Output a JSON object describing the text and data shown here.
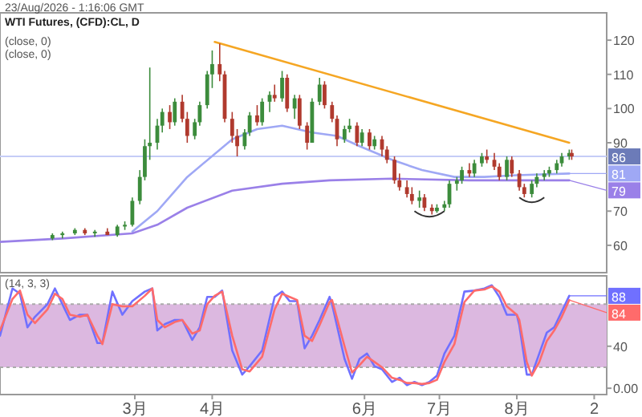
{
  "chart_data": [
    {
      "type": "candlestick",
      "title": "WTI Futures, (CFD):CL, D",
      "subtitle": "23/Aug/2026 - 1:16:06 GMT",
      "tick_labels": "y",
      "annotations": [
        "(close, 0)",
        "(close, 0)",
        {
          "text": "81",
          "x": "--08-22",
          "y": 81
        },
        {
          "text": "79",
          "x": "--08-22",
          "y": 79
        }
      ],
      "x": [
        "--01-27",
        "--01-31",
        "--02-05",
        "--02-09",
        "--02-13",
        "--02-18",
        "--02-22",
        "--02-25",
        "--02-28",
        "--03-03",
        "--03-05",
        "--03-07",
        "--03-10",
        "--03-12",
        "--03-15",
        "--03-17",
        "--03-20",
        "--03-22",
        "--03-25",
        "--03-27",
        "--03-30",
        "--04-01",
        "--04-04",
        "--04-06",
        "--04-09",
        "--04-11",
        "--04-14",
        "--04-16",
        "--04-19",
        "--04-21",
        "--04-24",
        "--04-26",
        "--04-29",
        "--05-01",
        "--05-04",
        "--05-06",
        "--05-09",
        "--05-11",
        "--05-14",
        "--05-16",
        "--05-19",
        "--05-21",
        "--05-24",
        "--05-26",
        "--05-29",
        "--05-31",
        "--06-03",
        "--06-05",
        "--06-08",
        "--06-10",
        "--06-13",
        "--06-15",
        "--06-18",
        "--06-20",
        "--06-23",
        "--06-25",
        "--06-28",
        "--06-30",
        "--07-03",
        "--07-05",
        "--07-08",
        "--07-10",
        "--07-13",
        "--07-15",
        "--07-18",
        "--07-20",
        "--07-23",
        "--07-25",
        "--07-28",
        "--07-30",
        "--08-02",
        "--08-04",
        "--08-07",
        "--08-09",
        "--08-12",
        "--08-14",
        "--08-17",
        "--08-19",
        "--08-22",
        "--08-23"
      ],
      "ohlc": [
        [
          62,
          63.5,
          61.5,
          63
        ],
        [
          63,
          64,
          62,
          63.5
        ],
        [
          63.5,
          65,
          63,
          64.5
        ],
        [
          64.5,
          65,
          63,
          63.5
        ],
        [
          63.5,
          64.5,
          62.5,
          64
        ],
        [
          64,
          65,
          63,
          63
        ],
        [
          63,
          66,
          62.5,
          65.5
        ],
        [
          65.5,
          67,
          64.5,
          66
        ],
        [
          66,
          74,
          65.5,
          73
        ],
        [
          73,
          82,
          72,
          80
        ],
        [
          80,
          91,
          79,
          89
        ],
        [
          89,
          112,
          85,
          90
        ],
        [
          90,
          97,
          88,
          95
        ],
        [
          95,
          100,
          93,
          99
        ],
        [
          99,
          101,
          94,
          96
        ],
        [
          96,
          103,
          95,
          102
        ],
        [
          102,
          104,
          96,
          97
        ],
        [
          97,
          99,
          90,
          92
        ],
        [
          92,
          97,
          91,
          96
        ],
        [
          96,
          102,
          95,
          101
        ],
        [
          101,
          111,
          100,
          110
        ],
        [
          110,
          117,
          106,
          113
        ],
        [
          113,
          119,
          108,
          110
        ],
        [
          110,
          111,
          96,
          97
        ],
        [
          97,
          99,
          90,
          92
        ],
        [
          92,
          94,
          86,
          89
        ],
        [
          89,
          94,
          88,
          93
        ],
        [
          93,
          99,
          92,
          98
        ],
        [
          98,
          101,
          95,
          96
        ],
        [
          96,
          103,
          95,
          102
        ],
        [
          102,
          105,
          99,
          104
        ],
        [
          104,
          107,
          102,
          103
        ],
        [
          103,
          111,
          102,
          109
        ],
        [
          109,
          110,
          99,
          100
        ],
        [
          100,
          104,
          97,
          103
        ],
        [
          103,
          104,
          94,
          95
        ],
        [
          95,
          96,
          88,
          90
        ],
        [
          90,
          103,
          90,
          102
        ],
        [
          102,
          109,
          101,
          107
        ],
        [
          107,
          108,
          100,
          101
        ],
        [
          101,
          102,
          96,
          97
        ],
        [
          97,
          98,
          89,
          91
        ],
        [
          91,
          95,
          90,
          94
        ],
        [
          94,
          97,
          93,
          95
        ],
        [
          95,
          96,
          89,
          90
        ],
        [
          90,
          94,
          89,
          93
        ],
        [
          93,
          94,
          88,
          89
        ],
        [
          89,
          92,
          88,
          91
        ],
        [
          91,
          92,
          86,
          88
        ],
        [
          88,
          89,
          84,
          85
        ],
        [
          85,
          86,
          78,
          79
        ],
        [
          79,
          81,
          76,
          77
        ],
        [
          77,
          79,
          74,
          75
        ],
        [
          75,
          77,
          72,
          73
        ],
        [
          73,
          76,
          71,
          74
        ],
        [
          74,
          75,
          70,
          71
        ],
        [
          71,
          72,
          69,
          70
        ],
        [
          70,
          72,
          69.5,
          71
        ],
        [
          71,
          73,
          70,
          72
        ],
        [
          72,
          79,
          71,
          78
        ],
        [
          78,
          80,
          76,
          79
        ],
        [
          79,
          83,
          78,
          82
        ],
        [
          82,
          84,
          80,
          81
        ],
        [
          81,
          85,
          80,
          84
        ],
        [
          84,
          87,
          83,
          86
        ],
        [
          86,
          88,
          84,
          85
        ],
        [
          85,
          87,
          82,
          83
        ],
        [
          83,
          84,
          79,
          80
        ],
        [
          80,
          86,
          79,
          85
        ],
        [
          85,
          86,
          80,
          81
        ],
        [
          81,
          82,
          76,
          77
        ],
        [
          77,
          78,
          74,
          75
        ],
        [
          75,
          79,
          74,
          78
        ],
        [
          78,
          81,
          77,
          80
        ],
        [
          80,
          82,
          79,
          81
        ],
        [
          81,
          83,
          80,
          82
        ],
        [
          82,
          85,
          81,
          84
        ],
        [
          84,
          87,
          83,
          86
        ],
        [
          86,
          88,
          85,
          87
        ],
        [
          87,
          88,
          85,
          86
        ]
      ],
      "colors": [
        "#3c8c3c",
        "#3c8c3c",
        "#3c8c3c",
        "#b03a2e",
        "#3c8c3c",
        "#b03a2e",
        "#3c8c3c",
        "#3c8c3c",
        "#3c8c3c",
        "#3c8c3c",
        "#3c8c3c",
        "#3c8c3c",
        "#3c8c3c",
        "#3c8c3c",
        "#b03a2e",
        "#3c8c3c",
        "#b03a2e",
        "#b03a2e",
        "#3c8c3c",
        "#3c8c3c",
        "#3c8c3c",
        "#3c8c3c",
        "#b03a2e",
        "#b03a2e",
        "#b03a2e",
        "#b03a2e",
        "#3c8c3c",
        "#3c8c3c",
        "#b03a2e",
        "#3c8c3c",
        "#3c8c3c",
        "#b03a2e",
        "#3c8c3c",
        "#b03a2e",
        "#3c8c3c",
        "#b03a2e",
        "#b03a2e",
        "#3c8c3c",
        "#3c8c3c",
        "#b03a2e",
        "#b03a2e",
        "#b03a2e",
        "#3c8c3c",
        "#3c8c3c",
        "#b03a2e",
        "#3c8c3c",
        "#b03a2e",
        "#3c8c3c",
        "#b03a2e",
        "#b03a2e",
        "#b03a2e",
        "#b03a2e",
        "#b03a2e",
        "#b03a2e",
        "#3c8c3c",
        "#b03a2e",
        "#b03a2e",
        "#3c8c3c",
        "#3c8c3c",
        "#3c8c3c",
        "#3c8c3c",
        "#3c8c3c",
        "#b03a2e",
        "#3c8c3c",
        "#3c8c3c",
        "#b03a2e",
        "#b03a2e",
        "#b03a2e",
        "#3c8c3c",
        "#b03a2e",
        "#b03a2e",
        "#b03a2e",
        "#3c8c3c",
        "#3c8c3c",
        "#3c8c3c",
        "#3c8c3c",
        "#3c8c3c",
        "#3c8c3c",
        "#3c8c3c",
        "#b03a2e"
      ],
      "series": [
        {
          "type": "line",
          "color": "#9fa8f5",
          "x": [
            "--02-28",
            "--03-10",
            "--03-22",
            "--04-09",
            "--04-19",
            "--04-29",
            "--05-11",
            "--05-21",
            "--05-30",
            "--06-12",
            "--06-24",
            "--07-07",
            "--07-19",
            "--08-01",
            "--08-22"
          ],
          "values": [
            64,
            70,
            80,
            91,
            94,
            95,
            93,
            92,
            89,
            85,
            82,
            80,
            80,
            80.5,
            81
          ]
        },
        {
          "type": "line",
          "color": "#9a80e8",
          "x": [
            "--01-06",
            "--01-31",
            "--02-28",
            "--03-10",
            "--03-22",
            "--04-09",
            "--04-29",
            "--05-18",
            "--06-12",
            "--07-13",
            "--08-22"
          ],
          "values": [
            61,
            62,
            63.5,
            66,
            71,
            76,
            78,
            79,
            79.5,
            79,
            79
          ]
        },
        {
          "type": "line",
          "color": "#f5a623",
          "x": [
            "--04-02",
            "--08-22"
          ],
          "values": [
            119.5,
            90
          ]
        }
      ],
      "ref_lines": [
        {
          "axis": "y",
          "value": 86,
          "label": "86",
          "color": "#c5cdf7"
        }
      ],
      "xlim": [
        "--01-06",
        "--09-06"
      ],
      "ylim": [
        52,
        128
      ],
      "yticks": [
        60,
        70,
        90,
        100,
        110,
        120
      ]
    },
    {
      "type": "line",
      "annotations": [
        "(14, 3, 3)",
        {
          "text": "88",
          "x": "--08-22",
          "y": 88
        },
        {
          "text": "84",
          "x": "--08-22",
          "y": 84
        }
      ],
      "x": [
        "--01-06",
        "--01-11",
        "--01-14",
        "--01-17",
        "--01-20",
        "--01-25",
        "--01-28",
        "--01-31",
        "--02-03",
        "--02-07",
        "--02-10",
        "--02-14",
        "--02-16",
        "--02-20",
        "--02-24",
        "--02-28",
        "--03-05",
        "--03-08",
        "--03-10",
        "--03-13",
        "--03-17",
        "--03-20",
        "--03-24",
        "--03-27",
        "--03-30",
        "--04-02",
        "--04-05",
        "--04-09",
        "--04-13",
        "--04-16",
        "--04-21",
        "--04-26",
        "--04-29",
        "--05-02",
        "--05-05",
        "--05-08",
        "--05-11",
        "--05-14",
        "--05-18",
        "--05-19",
        "--05-24",
        "--05-27",
        "--05-30",
        "--06-02",
        "--06-05",
        "--06-08",
        "--06-12",
        "--06-15",
        "--06-18",
        "--06-21",
        "--06-24",
        "--06-27",
        "--06-30",
        "--07-03",
        "--07-07",
        "--07-11",
        "--07-15",
        "--07-19",
        "--07-22",
        "--07-25",
        "--07-28",
        "--08-01",
        "--08-02",
        "--08-05",
        "--08-07",
        "--08-10",
        "--08-13",
        "--08-16",
        "--08-19",
        "--08-22"
      ],
      "series": [
        {
          "color": "#7070ff",
          "values": [
            50,
            95,
            90,
            58,
            68,
            80,
            95,
            80,
            65,
            70,
            70,
            43,
            43,
            92,
            70,
            83,
            92,
            95,
            55,
            61,
            65,
            65,
            46,
            58,
            87,
            87,
            93,
            36,
            13,
            21,
            36,
            87,
            92,
            83,
            83,
            38,
            50,
            65,
            87,
            80,
            28,
            9,
            28,
            33,
            21,
            18,
            6,
            10,
            3,
            6,
            3,
            6,
            12,
            33,
            50,
            92,
            93,
            95,
            98,
            87,
            70,
            70,
            60,
            13,
            13,
            33,
            53,
            58,
            73,
            88
          ]
        },
        {
          "color": "#ff6b6b",
          "values": [
            55,
            85,
            93,
            70,
            62,
            75,
            90,
            85,
            70,
            68,
            70,
            50,
            42,
            80,
            78,
            78,
            88,
            95,
            65,
            58,
            63,
            65,
            52,
            55,
            80,
            88,
            92,
            50,
            18,
            16,
            30,
            75,
            90,
            87,
            84,
            50,
            45,
            60,
            82,
            84,
            40,
            15,
            22,
            30,
            25,
            20,
            10,
            8,
            5,
            5,
            4,
            5,
            8,
            25,
            42,
            82,
            93,
            94,
            97,
            92,
            78,
            70,
            65,
            25,
            12,
            25,
            45,
            55,
            68,
            84
          ]
        }
      ],
      "bands": [
        {
          "axis": "y",
          "from": 20,
          "to": 80,
          "color": "#dcb8e0"
        }
      ],
      "ref_lines": [
        {
          "axis": "y",
          "value": 20,
          "color": "#aaaaaa",
          "line_style": "dashed"
        },
        {
          "axis": "y",
          "value": 80,
          "color": "#aaaaaa",
          "line_style": "dashed"
        }
      ],
      "xlim": [
        "--01-06",
        "--09-06"
      ],
      "xticks": [
        {
          "value": "--03-01",
          "label": "3月"
        },
        {
          "value": "--04-01",
          "label": "4月"
        },
        {
          "value": "--06-01",
          "label": "6月"
        },
        {
          "value": "--07-01",
          "label": "7月"
        },
        {
          "value": "--08-01",
          "label": "8月"
        },
        {
          "value": "--09-01",
          "label": "2"
        }
      ],
      "ylim": [
        -6,
        107
      ],
      "yticks": [
        {
          "value": 0,
          "label": "0.00"
        },
        40
      ]
    }
  ]
}
